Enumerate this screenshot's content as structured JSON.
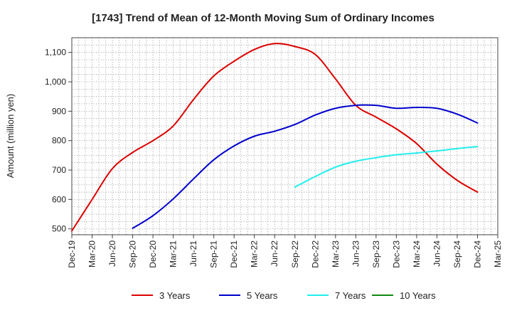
{
  "chart_data": {
    "type": "line",
    "title": "[1743]  Trend of Mean of 12-Month Moving Sum of Ordinary Incomes",
    "xlabel": "",
    "ylabel": "Amount (million yen)",
    "ylim": [
      480,
      1150
    ],
    "yticks": [
      500,
      600,
      700,
      800,
      900,
      1000,
      1100
    ],
    "ytick_labels": [
      "500",
      "600",
      "700",
      "800",
      "900",
      "1,000",
      "1,100"
    ],
    "categories": [
      "Dec-19",
      "Mar-20",
      "Jun-20",
      "Sep-20",
      "Dec-20",
      "Mar-21",
      "Jun-21",
      "Sep-21",
      "Dec-21",
      "Mar-22",
      "Jun-22",
      "Sep-22",
      "Dec-22",
      "Mar-23",
      "Jun-23",
      "Sep-23",
      "Dec-23",
      "Mar-24",
      "Jun-24",
      "Sep-24",
      "Dec-24",
      "Mar-25"
    ],
    "grid": true,
    "legend_position": "bottom",
    "series": [
      {
        "name": "3 Years",
        "color": "#dd0000",
        "values": [
          493,
          600,
          705,
          760,
          800,
          850,
          940,
          1020,
          1070,
          1110,
          1130,
          1120,
          1093,
          1010,
          920,
          880,
          840,
          790,
          720,
          665,
          625,
          null
        ]
      },
      {
        "name": "5 Years",
        "color": "#0000cc",
        "values": [
          null,
          null,
          null,
          502,
          545,
          602,
          670,
          735,
          782,
          815,
          832,
          855,
          887,
          910,
          920,
          920,
          910,
          913,
          910,
          890,
          860,
          null
        ]
      },
      {
        "name": "7 Years",
        "color": "#22eeee",
        "values": [
          null,
          null,
          null,
          null,
          null,
          null,
          null,
          null,
          null,
          null,
          null,
          642,
          678,
          710,
          730,
          742,
          752,
          758,
          765,
          773,
          780,
          null
        ]
      },
      {
        "name": "10 Years",
        "color": "#118811",
        "values": [
          null,
          null,
          null,
          null,
          null,
          null,
          null,
          null,
          null,
          null,
          null,
          null,
          null,
          null,
          null,
          null,
          null,
          null,
          null,
          null,
          null,
          null
        ]
      }
    ]
  }
}
